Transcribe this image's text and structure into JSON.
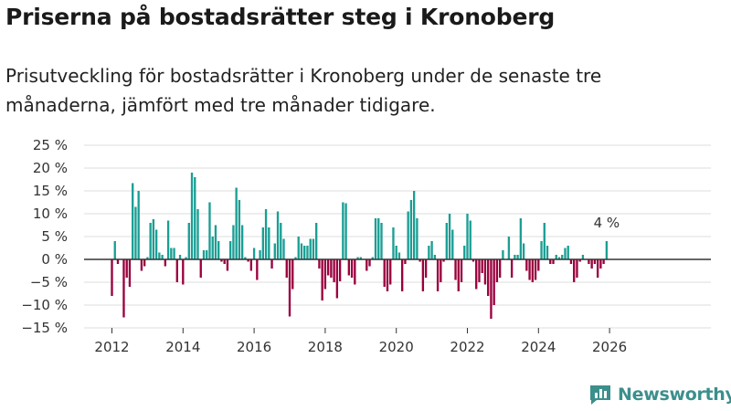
{
  "title": "Priserna på bostadsrätter steg i Kronoberg",
  "subtitle": "Prisutveckling för bostadsrätter i Kronoberg under de senaste tre månaderna, jämfört med tre månader tidigare.",
  "brand": "Newsworthy",
  "colors": {
    "positive": "#1a9e94",
    "negative": "#99003d",
    "logo": "#3b8f8c"
  },
  "chart_data": {
    "type": "bar",
    "title": "Priserna på bostadsrätter steg i Kronoberg",
    "ylabel": "",
    "xlabel": "",
    "ylim": [
      -15,
      25
    ],
    "y_ticks": [
      -15,
      -10,
      -5,
      0,
      5,
      10,
      15,
      20,
      25
    ],
    "y_tick_labels": [
      "−15 %",
      "−10 %",
      "−5 %",
      "0 %",
      "5 %",
      "10 %",
      "15 %",
      "20 %",
      "25 %"
    ],
    "x_ticks": [
      2012,
      2014,
      2016,
      2018,
      2020,
      2022,
      2024,
      2026
    ],
    "x_tick_labels": [
      "2012",
      "2014",
      "2016",
      "2018",
      "2020",
      "2022",
      "2024",
      "2026"
    ],
    "start": "2012-01",
    "series": [
      {
        "name": "Prisutveckling (%)",
        "values": [
          -8,
          4,
          -1,
          0,
          -12.7,
          -4,
          -6,
          16.7,
          11.5,
          15,
          -2.5,
          -1.5,
          0.5,
          8,
          8.8,
          6.5,
          1.5,
          1,
          -1.5,
          8.5,
          2.5,
          2.5,
          -5,
          1,
          -5.5,
          0.5,
          8,
          19,
          18,
          11,
          -4,
          2,
          2,
          12.5,
          5,
          7.5,
          4,
          -0.5,
          -1,
          -2.5,
          4,
          7.5,
          15.7,
          13,
          7.5,
          0.5,
          -0.5,
          -2.5,
          2.5,
          -4.5,
          2,
          7,
          11,
          7,
          -2,
          3.5,
          10.5,
          8,
          4.5,
          -4,
          -12.5,
          -6.5,
          0.5,
          5,
          3.5,
          3,
          3,
          4.5,
          4.5,
          8,
          -2,
          -9,
          -6.5,
          -3.5,
          -4,
          -5,
          -8.5,
          -4.8,
          12.5,
          12.3,
          -3.5,
          -4,
          -5.5,
          0.5,
          0.5,
          0,
          -2.5,
          -1.5,
          0.5,
          9,
          9,
          8,
          -6,
          -7,
          -5.5,
          7,
          3,
          1.5,
          -7,
          -1,
          10.5,
          13,
          15,
          9,
          -0.5,
          -7,
          -4,
          3,
          4,
          1,
          -7,
          -5,
          -0.5,
          8,
          10,
          6.5,
          -4.5,
          -7,
          -5,
          3,
          10,
          8.5,
          -0.5,
          -6.5,
          -5,
          -3,
          -5.5,
          -8,
          -13,
          -10,
          -5,
          -4,
          2,
          0,
          5,
          -4,
          1,
          1,
          9,
          3.5,
          -2.5,
          -4.5,
          -5,
          -4.5,
          -2.5,
          4,
          8,
          3,
          -1,
          -1,
          1,
          0.5,
          1,
          2.5,
          3,
          -1,
          -5,
          -4,
          -0.5,
          1,
          0,
          -1,
          -2,
          -1,
          -4,
          -2,
          -1,
          4
        ]
      }
    ],
    "annotations": [
      {
        "label": "4 %",
        "target": "last"
      }
    ]
  }
}
